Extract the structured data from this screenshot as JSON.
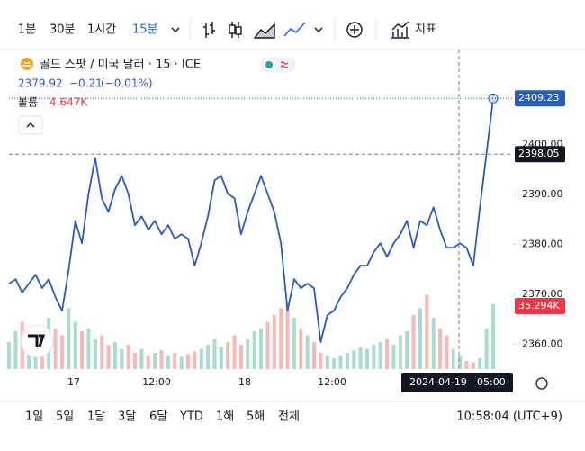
{
  "toolbar": {
    "intervals": [
      "1분",
      "30분",
      "1시간",
      "15분"
    ],
    "indicators": "지표"
  },
  "legend": {
    "symbol": "골드 스팟 / 미국 달러 · 15 · ICE",
    "price": 2379.92,
    "change": "−0.21",
    "change_pct": "(−0.01%)",
    "volume_name": "볼륨",
    "volume_value": "4.647K"
  },
  "chart_data": {
    "type": "line",
    "series": [
      {
        "name": "골드 스팟 / 미국 달러 · 15 · ICE",
        "color": "#2a5bb8",
        "values": [
          2372.1,
          2373.0,
          2370.3,
          2372.1,
          2373.9,
          2371.2,
          2373.0,
          2369.4,
          2366.7,
          2374.8,
          2384.7,
          2380.2,
          2390.1,
          2397.3,
          2389.2,
          2386.5,
          2391.0,
          2393.7,
          2390.1,
          2383.8,
          2385.6,
          2382.9,
          2384.7,
          2382.0,
          2383.8,
          2381.1,
          2382.0,
          2381.1,
          2375.7,
          2380.2,
          2385.6,
          2392.8,
          2393.7,
          2390.1,
          2389.2,
          2382.0,
          2386.5,
          2390.1,
          2393.7,
          2390.1,
          2386.5,
          2380.2,
          2366.7,
          2373.0,
          2371.2,
          2372.1,
          2371.2,
          2360.4,
          2365.8,
          2366.7,
          2369.4,
          2371.2,
          2373.9,
          2375.7,
          2375.7,
          2378.4,
          2380.2,
          2377.5,
          2380.2,
          2382.0,
          2384.7,
          2379.3,
          2384.7,
          2383.8,
          2387.4,
          2382.9,
          2379.3,
          2379.3,
          2380.2,
          2379.3,
          2375.7,
          2387.4,
          2398.2,
          2409.2
        ]
      }
    ],
    "volume": {
      "values": [
        20,
        28,
        35,
        25,
        30,
        22,
        38,
        30,
        25,
        45,
        35,
        28,
        30,
        22,
        25,
        18,
        20,
        15,
        18,
        12,
        15,
        10,
        12,
        14,
        10,
        12,
        9,
        11,
        13,
        15,
        18,
        22,
        16,
        20,
        25,
        18,
        22,
        28,
        30,
        35,
        40,
        45,
        50,
        38,
        30,
        25,
        20,
        12,
        10,
        8,
        10,
        12,
        14,
        16,
        15,
        18,
        20,
        22,
        18,
        25,
        28,
        40,
        45,
        55,
        38,
        30,
        25,
        15,
        10,
        6,
        5,
        8,
        30,
        48
      ],
      "up_color": "#a8dccf",
      "down_color": "#f6b9b6"
    },
    "ylim": [
      2355,
      2419
    ],
    "yticks": [
      {
        "value": 2360,
        "label": "2360.00"
      },
      {
        "value": 2370,
        "label": "2370.00"
      },
      {
        "value": 2380,
        "label": "2380.00"
      },
      {
        "value": 2390,
        "label": "2390.00"
      },
      {
        "value": 2400,
        "label": "2400.00"
      }
    ],
    "x_labels": [
      "17",
      "12:00",
      "18",
      "12:00"
    ],
    "last_price": 2409.23,
    "crosshair": {
      "price": 2398.05,
      "date": "2024-04-19",
      "time": "05:00"
    },
    "volume_label": "35.294K"
  },
  "ranges": [
    "1일",
    "5일",
    "1달",
    "3달",
    "6달",
    "YTD",
    "1해",
    "5해",
    "전체"
  ],
  "clock": "10:58:04 (UTC+9)"
}
